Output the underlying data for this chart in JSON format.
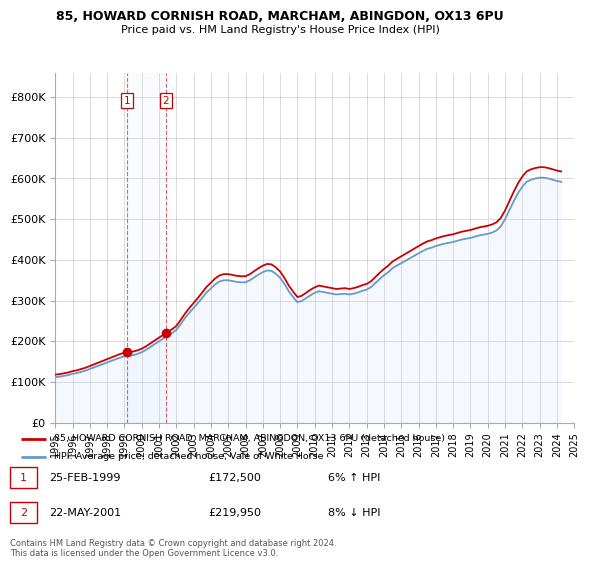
{
  "title1": "85, HOWARD CORNISH ROAD, MARCHAM, ABINGDON, OX13 6PU",
  "title2": "Price paid vs. HM Land Registry's House Price Index (HPI)",
  "ylim": [
    0,
    860000
  ],
  "yticks": [
    0,
    100000,
    200000,
    300000,
    400000,
    500000,
    600000,
    700000,
    800000
  ],
  "ytick_labels": [
    "£0",
    "£100K",
    "£200K",
    "£300K",
    "£400K",
    "£500K",
    "£600K",
    "£700K",
    "£800K"
  ],
  "sale1_date": 1999.14,
  "sale1_price": 172500,
  "sale2_date": 2001.39,
  "sale2_price": 219950,
  "legend_line1": "85, HOWARD CORNISH ROAD, MARCHAM, ABINGDON, OX13 6PU (detached house)",
  "legend_line2": "HPI: Average price, detached house, Vale of White Horse",
  "table_row1": [
    "1",
    "25-FEB-1999",
    "£172,500",
    "6% ↑ HPI"
  ],
  "table_row2": [
    "2",
    "22-MAY-2001",
    "£219,950",
    "8% ↓ HPI"
  ],
  "footer": "Contains HM Land Registry data © Crown copyright and database right 2024.\nThis data is licensed under the Open Government Licence v3.0.",
  "line_color_red": "#cc0000",
  "line_color_blue": "#6699cc",
  "shade_color": "#cce0ff",
  "grid_color": "#cccccc",
  "hpi_years": [
    1995,
    1995.25,
    1995.5,
    1995.75,
    1996,
    1996.25,
    1996.5,
    1996.75,
    1997,
    1997.25,
    1997.5,
    1997.75,
    1998,
    1998.25,
    1998.5,
    1998.75,
    1999,
    1999.25,
    1999.5,
    1999.75,
    2000,
    2000.25,
    2000.5,
    2000.75,
    2001,
    2001.25,
    2001.5,
    2001.75,
    2002,
    2002.25,
    2002.5,
    2002.75,
    2003,
    2003.25,
    2003.5,
    2003.75,
    2004,
    2004.25,
    2004.5,
    2004.75,
    2005,
    2005.25,
    2005.5,
    2005.75,
    2006,
    2006.25,
    2006.5,
    2006.75,
    2007,
    2007.25,
    2007.5,
    2007.75,
    2008,
    2008.25,
    2008.5,
    2008.75,
    2009,
    2009.25,
    2009.5,
    2009.75,
    2010,
    2010.25,
    2010.5,
    2010.75,
    2011,
    2011.25,
    2011.5,
    2011.75,
    2012,
    2012.25,
    2012.5,
    2012.75,
    2013,
    2013.25,
    2013.5,
    2013.75,
    2014,
    2014.25,
    2014.5,
    2014.75,
    2015,
    2015.25,
    2015.5,
    2015.75,
    2016,
    2016.25,
    2016.5,
    2016.75,
    2017,
    2017.25,
    2017.5,
    2017.75,
    2018,
    2018.25,
    2018.5,
    2018.75,
    2019,
    2019.25,
    2019.5,
    2019.75,
    2020,
    2020.25,
    2020.5,
    2020.75,
    2021,
    2021.25,
    2021.5,
    2021.75,
    2022,
    2022.25,
    2022.5,
    2022.75,
    2023,
    2023.25,
    2023.5,
    2023.75,
    2024,
    2024.25
  ],
  "hpi_values": [
    112000,
    113000,
    115000,
    117000,
    120000,
    122000,
    125000,
    128000,
    132000,
    136000,
    140000,
    144000,
    148000,
    152000,
    156000,
    160000,
    163000,
    164000,
    166000,
    169000,
    173000,
    179000,
    186000,
    193000,
    200000,
    207000,
    214000,
    220000,
    228000,
    242000,
    257000,
    270000,
    282000,
    294000,
    307000,
    320000,
    330000,
    340000,
    347000,
    350000,
    350000,
    348000,
    346000,
    345000,
    345000,
    350000,
    357000,
    364000,
    370000,
    374000,
    373000,
    366000,
    356000,
    341000,
    323000,
    309000,
    296000,
    299000,
    306000,
    313000,
    319000,
    323000,
    321000,
    319000,
    317000,
    315000,
    316000,
    317000,
    315000,
    317000,
    320000,
    324000,
    327000,
    333000,
    343000,
    353000,
    362000,
    370000,
    380000,
    386000,
    392000,
    398000,
    404000,
    410000,
    416000,
    422000,
    427000,
    430000,
    434000,
    437000,
    440000,
    442000,
    444000,
    447000,
    450000,
    452000,
    454000,
    457000,
    460000,
    462000,
    464000,
    467000,
    472000,
    482000,
    500000,
    522000,
    544000,
    564000,
    580000,
    592000,
    597000,
    600000,
    602000,
    602000,
    600000,
    597000,
    594000,
    592000
  ],
  "xtick_years": [
    1995,
    1996,
    1997,
    1998,
    1999,
    2000,
    2001,
    2002,
    2003,
    2004,
    2005,
    2006,
    2007,
    2008,
    2009,
    2010,
    2011,
    2012,
    2013,
    2014,
    2015,
    2016,
    2017,
    2018,
    2019,
    2020,
    2021,
    2022,
    2023,
    2024,
    2025
  ]
}
